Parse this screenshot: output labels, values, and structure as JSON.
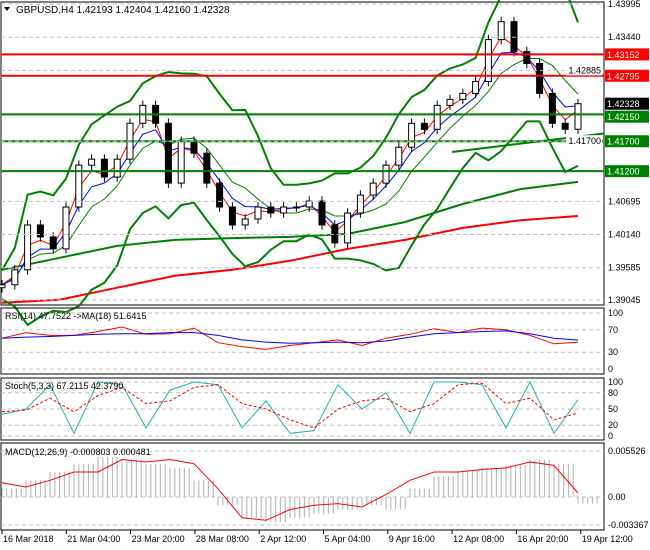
{
  "header": {
    "symbol": "GBPUSD,H4",
    "ohlc": "1.42193 1.42404 1.42160 1.42328"
  },
  "chart_data": [
    {
      "type": "candlestick",
      "title": "GBPUSD,H4",
      "ylim": [
        1.39045,
        1.43995
      ],
      "yticks": [
        1.43995,
        1.4344,
        1.42885,
        1.417,
        1.40695,
        1.4014,
        1.39585,
        1.39045
      ],
      "current_price": 1.42328,
      "levels": [
        {
          "value": 1.43152,
          "color": "#ff0000"
        },
        {
          "value": 1.42795,
          "color": "#ff0000"
        },
        {
          "value": 1.4215,
          "color": "#008000"
        },
        {
          "value": 1.417,
          "color": "#008000"
        },
        {
          "value": 1.412,
          "color": "#008000"
        }
      ],
      "closes": [
        1.393,
        1.3955,
        1.403,
        1.401,
        1.399,
        1.406,
        1.413,
        1.414,
        1.411,
        1.414,
        1.42,
        1.423,
        1.42,
        1.41,
        1.417,
        1.415,
        1.41,
        1.406,
        1.403,
        1.404,
        1.406,
        1.405,
        1.406,
        1.406,
        1.407,
        1.403,
        1.4,
        1.405,
        1.408,
        1.41,
        1.413,
        1.416,
        1.42,
        1.419,
        1.423,
        1.424,
        1.425,
        1.427,
        1.434,
        1.437,
        1.432,
        1.43,
        1.425,
        1.42,
        1.419,
        1.42328
      ],
      "ma_slow_green": [
        1.3955,
        1.3975,
        1.3995,
        1.4005,
        1.4008,
        1.401,
        1.4015,
        1.4035,
        1.4065,
        1.409,
        1.4102
      ],
      "ma_slow_red": [
        1.39,
        1.3905,
        1.3925,
        1.3945,
        1.3955,
        1.397,
        1.399,
        1.4005,
        1.4025,
        1.4038,
        1.4045
      ],
      "colors": {
        "bull": "#00c000",
        "band": "#008000",
        "ma200": "#ff0000"
      }
    },
    {
      "type": "line",
      "title": "RSI(14) 47.7522  ->MA(18) 51.6415",
      "ylim": [
        0,
        100
      ],
      "yticks": [
        100,
        70,
        30,
        0
      ],
      "rsi": [
        55,
        65,
        60,
        60,
        67,
        75,
        62,
        63,
        73,
        47,
        40,
        35,
        42,
        47,
        52,
        42,
        55,
        62,
        72,
        65,
        73,
        70,
        60,
        45,
        47.75
      ],
      "ma": [
        55,
        57,
        58,
        60,
        62,
        63,
        63,
        65,
        65,
        60,
        52,
        48,
        46,
        47,
        48,
        47,
        50,
        57,
        63,
        65,
        67,
        68,
        63,
        55,
        51.64
      ]
    },
    {
      "type": "line",
      "title": "Stoch(5,3,3) 67.2115 42.3790",
      "ylim": [
        0,
        100
      ],
      "yticks": [
        100,
        80,
        50,
        20,
        0
      ],
      "main": [
        40,
        50,
        95,
        5,
        100,
        95,
        15,
        85,
        100,
        95,
        15,
        65,
        5,
        10,
        95,
        50,
        80,
        5,
        100,
        100,
        95,
        15,
        100,
        5,
        67.21
      ],
      "signal": [
        45,
        48,
        70,
        45,
        75,
        90,
        60,
        65,
        90,
        95,
        60,
        50,
        30,
        15,
        50,
        65,
        70,
        45,
        60,
        95,
        98,
        60,
        70,
        30,
        42.38
      ]
    },
    {
      "type": "bar",
      "title": "MACD(12,26,9) -0.000803 0.000481",
      "ylim": [
        -0.003367,
        0.005526
      ],
      "yticks": [
        "0.005526",
        "0.00",
        "-0.003367"
      ],
      "histogram": [
        0.001,
        0.002,
        0.003,
        0.004,
        0.0048,
        0.0045,
        0.004,
        0.0035,
        0.002,
        -0.001,
        -0.0025,
        -0.003,
        -0.0025,
        -0.002,
        -0.0015,
        -0.001,
        -0.0015,
        0.001,
        0.0025,
        0.0032,
        0.0035,
        0.0038,
        0.0045,
        0.004,
        -0.000803
      ],
      "signal": [
        0.0017,
        0.0012,
        0.002,
        0.003,
        0.003,
        0.0045,
        0.0042,
        0.0045,
        0.004,
        0.001,
        -0.0025,
        -0.0028,
        -0.0015,
        -0.001,
        -0.0008,
        -0.0012,
        0.0003,
        0.002,
        0.003,
        0.003,
        0.0033,
        0.0035,
        0.0042,
        0.0038,
        0.000481
      ]
    }
  ],
  "xaxis": [
    "16 Mar 2018",
    "21 Mar 04:00",
    "23 Mar 20:00",
    "28 Mar 08:00",
    "2 Apr 12:00",
    "5 Apr 04:00",
    "9 Apr 16:00",
    "12 Apr 08:00",
    "16 Apr 20:00",
    "19 Apr 12:00"
  ]
}
